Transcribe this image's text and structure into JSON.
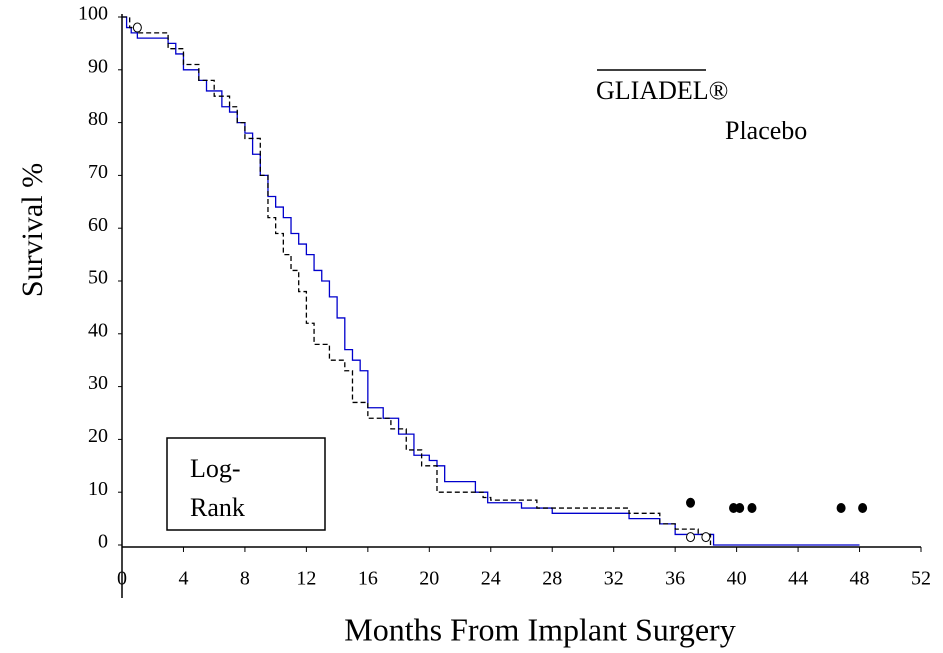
{
  "chart_data": {
    "type": "step",
    "x_label": "Months From Implant Surgery",
    "y_label": "Survival %",
    "xlim": [
      0,
      52
    ],
    "xticks": [
      0,
      4,
      8,
      12,
      16,
      20,
      24,
      28,
      32,
      36,
      40,
      44,
      48,
      52
    ],
    "ylim": [
      0,
      100
    ],
    "yticks": [
      0,
      10,
      20,
      30,
      40,
      50,
      60,
      70,
      80,
      90,
      100
    ],
    "series": [
      {
        "name": "GLIADEL®",
        "color": "#0000cc",
        "dash": false,
        "x": [
          0,
          0.3,
          0.6,
          1,
          3,
          3.5,
          4,
          5,
          5.5,
          6.5,
          7,
          7.5,
          8,
          8.5,
          9,
          9.5,
          10,
          10.5,
          11,
          11.5,
          12,
          12.5,
          13,
          13.5,
          14,
          14.5,
          15,
          15.5,
          16,
          17,
          18,
          19,
          20,
          20.5,
          21,
          23,
          23.8,
          26,
          28,
          33,
          35,
          36,
          37,
          38.5,
          48
        ],
        "values": [
          100,
          98,
          97,
          96,
          95,
          93,
          90,
          88,
          86,
          83,
          82,
          80,
          78,
          74,
          70,
          66,
          64,
          62,
          59,
          57,
          55,
          52,
          50,
          47,
          43,
          37,
          35,
          33,
          26,
          24,
          21,
          17,
          16,
          15,
          12,
          10,
          8,
          7,
          6,
          5,
          4,
          2,
          2,
          0,
          0
        ]
      },
      {
        "name": "Placebo",
        "color": "#000000",
        "dash": true,
        "x": [
          0,
          0.5,
          1,
          3,
          4,
          5,
          6,
          7,
          7.5,
          8,
          9,
          9.5,
          10,
          10.5,
          11,
          11.5,
          12,
          12.5,
          13.5,
          14.5,
          15,
          16,
          17.5,
          18.5,
          19.5,
          20.5,
          23,
          23.5,
          24,
          27,
          33,
          35,
          36,
          37.5,
          38.3
        ],
        "values": [
          100,
          98,
          97,
          94,
          91,
          88,
          85,
          83,
          80,
          77,
          70,
          62,
          59,
          55,
          52,
          48,
          42,
          38,
          35,
          33,
          27,
          24,
          22,
          18,
          15,
          10,
          10,
          9,
          8.5,
          7,
          6,
          4,
          3,
          2,
          0
        ]
      }
    ],
    "markers": [
      {
        "filled": true,
        "x": [
          37,
          39.8,
          40.2,
          41,
          46.8,
          48.2
        ],
        "y": [
          8,
          7,
          7,
          7,
          7,
          7
        ]
      },
      {
        "filled": false,
        "x": [
          1,
          37,
          38
        ],
        "y": [
          98,
          1.5,
          1.5
        ]
      }
    ],
    "box_text": [
      "Log-",
      "Rank"
    ]
  }
}
